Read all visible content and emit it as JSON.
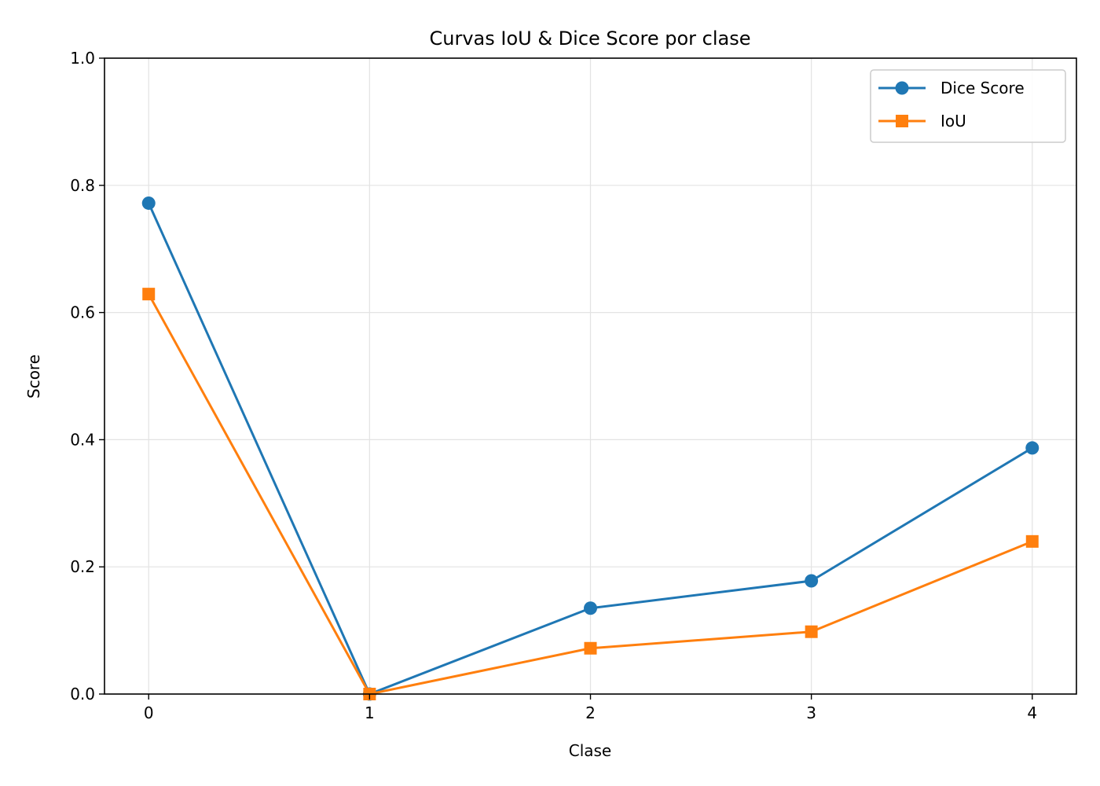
{
  "chart_data": {
    "type": "line",
    "title": "Curvas IoU & Dice Score por clase",
    "xlabel": "Clase",
    "ylabel": "Score",
    "x": [
      0,
      1,
      2,
      3,
      4
    ],
    "xticks": [
      "0",
      "1",
      "2",
      "3",
      "4"
    ],
    "yticks": [
      "0.0",
      "0.2",
      "0.4",
      "0.6",
      "0.8",
      "1.0"
    ],
    "xlim": [
      -0.2,
      4.2
    ],
    "ylim": [
      0,
      1.0
    ],
    "grid": true,
    "legend_position": "top-right",
    "series": [
      {
        "name": "Dice Score",
        "marker": "circle",
        "color": "#1f77b4",
        "values": [
          0.772,
          0.0,
          0.135,
          0.178,
          0.387
        ]
      },
      {
        "name": "IoU",
        "marker": "square",
        "color": "#ff7f0e",
        "values": [
          0.629,
          0.0,
          0.072,
          0.098,
          0.24
        ]
      }
    ]
  }
}
